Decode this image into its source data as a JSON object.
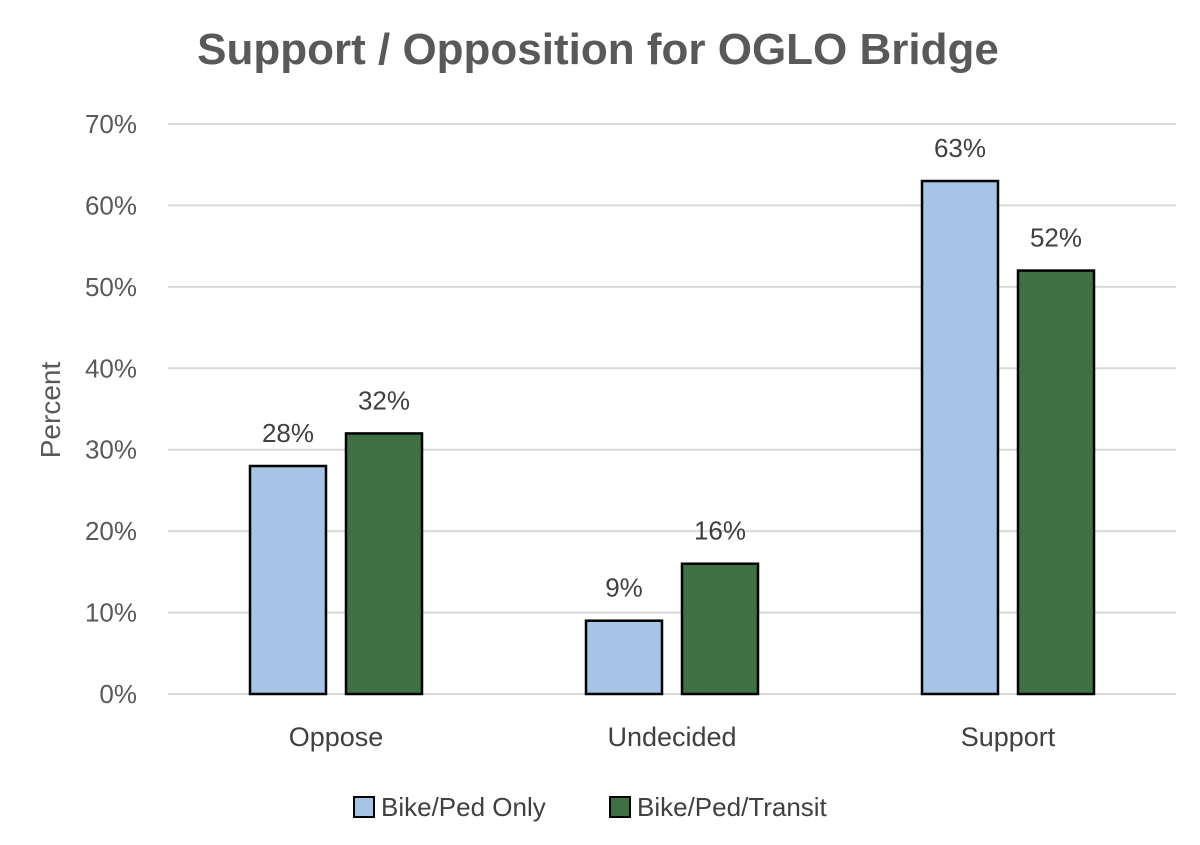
{
  "chart_data": {
    "type": "bar",
    "title": "Support / Opposition for OGLO Bridge",
    "ylabel": "Percent",
    "xlabel": "",
    "categories": [
      "Oppose",
      "Undecided",
      "Support"
    ],
    "series": [
      {
        "name": "Bike/Ped Only",
        "values": [
          28,
          9,
          63
        ],
        "labels": [
          "28%",
          "9%",
          "63%"
        ],
        "color": "#a6c4e6"
      },
      {
        "name": "Bike/Ped/Transit",
        "values": [
          32,
          16,
          52
        ],
        "labels": [
          "32%",
          "16%",
          "52%"
        ],
        "color": "#3e7044"
      }
    ],
    "ylim": [
      0,
      70
    ],
    "yticks": [
      {
        "value": 0,
        "label": "0%"
      },
      {
        "value": 10,
        "label": "10%"
      },
      {
        "value": 20,
        "label": "20%"
      },
      {
        "value": 30,
        "label": "30%"
      },
      {
        "value": 40,
        "label": "40%"
      },
      {
        "value": 50,
        "label": "50%"
      },
      {
        "value": 60,
        "label": "60%"
      },
      {
        "value": 70,
        "label": "70%"
      }
    ],
    "grid": true,
    "legend_position": "bottom"
  }
}
